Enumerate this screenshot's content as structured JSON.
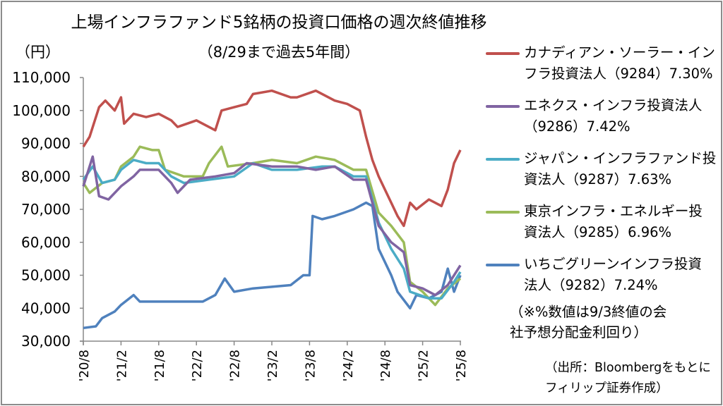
{
  "chart_data": {
    "type": "line",
    "title": "上場インフラファンド5銘柄の投資口価格の週次終値推移",
    "subtitle": "（8/29まで過去5年間）",
    "ylabel": "（円）",
    "ylim": [
      30000,
      110000
    ],
    "yticks": [
      "30,000",
      "40,000",
      "50,000",
      "60,000",
      "70,000",
      "80,000",
      "90,000",
      "100,000",
      "110,000"
    ],
    "xlim_months_from_2020_08": [
      0,
      60
    ],
    "xticks": [
      "'20/8",
      "'21/2",
      "'21/8",
      "'22/2",
      "'22/8",
      "'23/2",
      "'23/8",
      "'24/2",
      "'24/8",
      "'25/2",
      "'25/8"
    ],
    "grid": false,
    "legend_position": "right",
    "series": [
      {
        "name": "カナディアン・ソーラー・インフラ投資法人（9284）7.30%",
        "label_lines": [
          "カナディアン・ソーラー・イン",
          "フラ投資法人（9284）7.30%"
        ],
        "color": "#c0504d",
        "x": [
          0,
          1,
          2.5,
          3.5,
          5,
          6,
          6.5,
          8,
          10,
          12,
          14,
          15,
          18,
          21,
          22,
          24,
          26,
          27,
          30,
          33,
          34,
          37,
          40,
          42,
          44,
          45,
          46,
          47,
          49,
          50,
          51,
          52,
          53,
          55,
          57,
          58,
          59,
          60
        ],
        "y": [
          89000,
          92000,
          101000,
          103000,
          100000,
          104000,
          96000,
          99000,
          98000,
          99000,
          97000,
          95000,
          97000,
          94000,
          100000,
          101000,
          102000,
          105000,
          106000,
          104000,
          104000,
          106000,
          103000,
          102000,
          100000,
          92000,
          85000,
          80000,
          72000,
          68000,
          65000,
          72000,
          70000,
          73000,
          71000,
          76000,
          84000,
          88000
        ]
      },
      {
        "name": "エネクス・インフラ投資法人（9286）7.42%",
        "label_lines": [
          "エネクス・インフラ投資法人",
          "（9286）7.42%"
        ],
        "color": "#8064a2",
        "x": [
          0,
          1.5,
          2.5,
          4,
          6,
          8,
          9,
          12,
          14,
          15,
          17,
          21,
          24,
          26,
          30,
          34,
          37,
          40,
          43,
          45,
          47,
          49,
          51,
          52,
          54,
          56,
          58,
          60
        ],
        "y": [
          77000,
          86000,
          74000,
          73000,
          77000,
          80000,
          82000,
          82000,
          78000,
          75000,
          79000,
          80000,
          81000,
          84000,
          83000,
          83000,
          82000,
          83000,
          79000,
          79000,
          65000,
          60000,
          57000,
          47000,
          46000,
          44000,
          47000,
          53000
        ]
      },
      {
        "name": "ジャパン・インフラファンド投資法人（9287）7.63%",
        "label_lines": [
          "ジャパン・インフラファンド投",
          "資法人（9287）7.63%"
        ],
        "color": "#4bacc6",
        "x": [
          0,
          1.5,
          3,
          5,
          6,
          8,
          10,
          12,
          14,
          16,
          20,
          24,
          27,
          30,
          34,
          38,
          40,
          43,
          45,
          47,
          49,
          51,
          52,
          55,
          57,
          59,
          60
        ],
        "y": [
          79000,
          83000,
          78000,
          79000,
          82000,
          85000,
          84000,
          84000,
          80000,
          78000,
          79000,
          80000,
          84000,
          82000,
          82000,
          83000,
          83000,
          80000,
          80000,
          66000,
          58000,
          52000,
          45000,
          43000,
          43000,
          48000,
          51000
        ]
      },
      {
        "name": "東京インフラ・エネルギー投資法人（9285）6.96%",
        "label_lines": [
          "東京インフラ・エネルギー投",
          "資法人（9285）6.96%"
        ],
        "color": "#9bbb59",
        "x": [
          0,
          1,
          3,
          5,
          6,
          8,
          9,
          11,
          12,
          13,
          16,
          19,
          20,
          22,
          23,
          27,
          30,
          34,
          37,
          40,
          43,
          45,
          47,
          49,
          51,
          52,
          54,
          56,
          58,
          60
        ],
        "y": [
          78000,
          75000,
          78000,
          79000,
          83000,
          86000,
          89000,
          88000,
          88000,
          82000,
          80000,
          80000,
          84000,
          89000,
          83000,
          84000,
          85000,
          84000,
          86000,
          85000,
          82000,
          82000,
          69000,
          65000,
          60000,
          48000,
          45000,
          41000,
          46000,
          49000
        ]
      },
      {
        "name": "いちごグリーンインフラ投資法人（9282）7.24%",
        "label_lines": [
          "いちごグリーンインフラ投資",
          "法人（9282）7.24%"
        ],
        "color": "#4f81bd",
        "x": [
          0,
          2,
          3,
          5,
          6,
          8,
          9,
          12,
          15,
          18,
          19,
          21,
          22.5,
          24,
          27,
          30,
          33,
          35,
          36,
          36.5,
          38,
          40,
          43,
          45,
          46,
          47,
          49,
          50,
          52,
          53,
          55,
          57,
          58,
          59,
          60
        ],
        "y": [
          34000,
          34500,
          37000,
          39000,
          41000,
          44000,
          42000,
          42000,
          42000,
          42000,
          42000,
          44000,
          49000,
          45000,
          46000,
          46500,
          47000,
          50000,
          50000,
          68000,
          67000,
          68000,
          70000,
          72000,
          71000,
          58000,
          50000,
          45000,
          40000,
          44000,
          43000,
          45000,
          52000,
          45000,
          50000
        ]
      }
    ]
  },
  "note_lines": [
    "（※%数値は9/3終値の会",
    "社予想分配金利回り）"
  ],
  "source_lines": [
    "（出所：Bloombergをもとに",
    "フィリップ証券作成）"
  ]
}
